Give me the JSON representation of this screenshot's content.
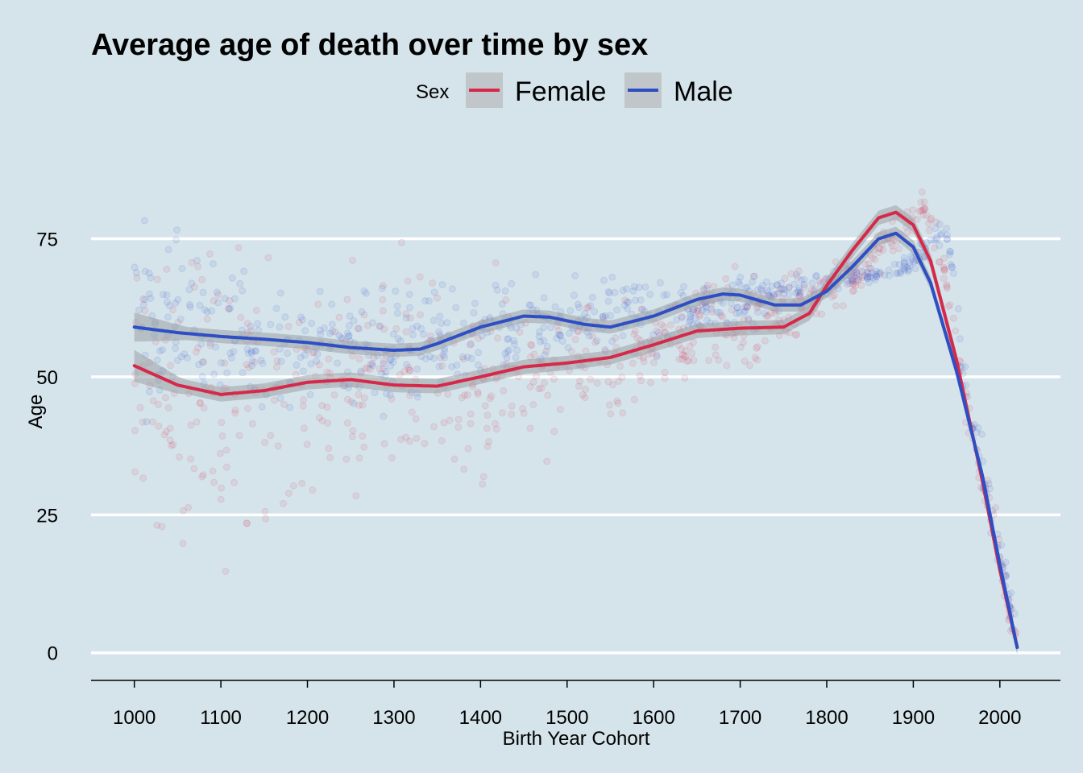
{
  "chart_data": {
    "type": "line",
    "title": "Average age of death over time by sex",
    "xlabel": "Birth Year Cohort",
    "ylabel": "Age",
    "xlim": [
      950,
      2070
    ],
    "ylim": [
      -5,
      92
    ],
    "x_ticks": [
      1000,
      1100,
      1200,
      1300,
      1400,
      1500,
      1600,
      1700,
      1800,
      1900,
      2000
    ],
    "y_ticks": [
      0,
      25,
      50,
      75
    ],
    "grid": "horizontal-major",
    "legend": {
      "title": "Sex",
      "placement": "top",
      "entries": [
        "Female",
        "Male"
      ]
    },
    "series": [
      {
        "name": "Female",
        "color": "#d6294a",
        "smooth": [
          [
            1000,
            52
          ],
          [
            1050,
            48.5
          ],
          [
            1100,
            46.8
          ],
          [
            1150,
            47.5
          ],
          [
            1200,
            49
          ],
          [
            1250,
            49.5
          ],
          [
            1300,
            48.5
          ],
          [
            1350,
            48.3
          ],
          [
            1400,
            50
          ],
          [
            1450,
            51.8
          ],
          [
            1500,
            52.5
          ],
          [
            1550,
            53.5
          ],
          [
            1600,
            55.8
          ],
          [
            1650,
            58.3
          ],
          [
            1700,
            58.8
          ],
          [
            1750,
            59
          ],
          [
            1780,
            61.5
          ],
          [
            1800,
            66.5
          ],
          [
            1830,
            73
          ],
          [
            1860,
            78.8
          ],
          [
            1880,
            79.8
          ],
          [
            1900,
            77.5
          ],
          [
            1920,
            71
          ],
          [
            1950,
            53
          ],
          [
            1980,
            31
          ],
          [
            2000,
            15
          ],
          [
            2020,
            1
          ]
        ],
        "band_halfwidth": 1.3,
        "points_center": [
          [
            1000,
            50
          ],
          [
            1100,
            47
          ],
          [
            1200,
            49
          ],
          [
            1300,
            48
          ],
          [
            1400,
            50
          ],
          [
            1500,
            52
          ],
          [
            1600,
            56
          ],
          [
            1700,
            60
          ],
          [
            1800,
            65
          ],
          [
            1850,
            70
          ],
          [
            1880,
            76
          ],
          [
            1910,
            81
          ],
          [
            1930,
            74
          ],
          [
            1960,
            45
          ],
          [
            1990,
            25
          ],
          [
            2020,
            2
          ]
        ],
        "points_spread": [
          [
            1000,
            16
          ],
          [
            1100,
            15
          ],
          [
            1200,
            13
          ],
          [
            1300,
            12
          ],
          [
            1400,
            10
          ],
          [
            1500,
            8
          ],
          [
            1600,
            6
          ],
          [
            1700,
            5
          ],
          [
            1800,
            3
          ],
          [
            1850,
            2
          ],
          [
            1880,
            2
          ],
          [
            1910,
            1.5
          ],
          [
            1930,
            2
          ],
          [
            1960,
            3
          ],
          [
            1990,
            3
          ],
          [
            2020,
            2
          ]
        ]
      },
      {
        "name": "Male",
        "color": "#2e4ec4",
        "smooth": [
          [
            1000,
            59
          ],
          [
            1050,
            58
          ],
          [
            1100,
            57.3
          ],
          [
            1150,
            56.8
          ],
          [
            1200,
            56.2
          ],
          [
            1250,
            55.3
          ],
          [
            1300,
            54.8
          ],
          [
            1330,
            55
          ],
          [
            1350,
            56
          ],
          [
            1400,
            59
          ],
          [
            1450,
            61
          ],
          [
            1480,
            60.8
          ],
          [
            1520,
            59.5
          ],
          [
            1550,
            59
          ],
          [
            1600,
            61
          ],
          [
            1650,
            64
          ],
          [
            1680,
            65
          ],
          [
            1700,
            64.8
          ],
          [
            1740,
            63
          ],
          [
            1770,
            63
          ],
          [
            1800,
            65.5
          ],
          [
            1830,
            70
          ],
          [
            1860,
            75
          ],
          [
            1880,
            76
          ],
          [
            1900,
            73.5
          ],
          [
            1920,
            67
          ],
          [
            1950,
            51
          ],
          [
            1980,
            32
          ],
          [
            2000,
            16
          ],
          [
            2020,
            1
          ]
        ],
        "band_halfwidth": 1.2,
        "points_center": [
          [
            1000,
            60
          ],
          [
            1100,
            58
          ],
          [
            1200,
            56
          ],
          [
            1300,
            55
          ],
          [
            1400,
            59
          ],
          [
            1500,
            60
          ],
          [
            1600,
            61
          ],
          [
            1700,
            64
          ],
          [
            1750,
            66
          ],
          [
            1800,
            67
          ],
          [
            1850,
            68.5
          ],
          [
            1890,
            70
          ],
          [
            1920,
            74
          ],
          [
            1940,
            76
          ],
          [
            1960,
            48
          ],
          [
            1990,
            26
          ],
          [
            2020,
            2
          ]
        ],
        "points_spread": [
          [
            1000,
            9
          ],
          [
            1100,
            8
          ],
          [
            1200,
            7
          ],
          [
            1300,
            7
          ],
          [
            1400,
            6
          ],
          [
            1500,
            4
          ],
          [
            1600,
            4
          ],
          [
            1700,
            3
          ],
          [
            1750,
            2
          ],
          [
            1800,
            1.5
          ],
          [
            1850,
            1.2
          ],
          [
            1890,
            1
          ],
          [
            1920,
            1.2
          ],
          [
            1940,
            1.5
          ],
          [
            1960,
            3
          ],
          [
            1990,
            3
          ],
          [
            2020,
            2
          ]
        ]
      }
    ]
  }
}
